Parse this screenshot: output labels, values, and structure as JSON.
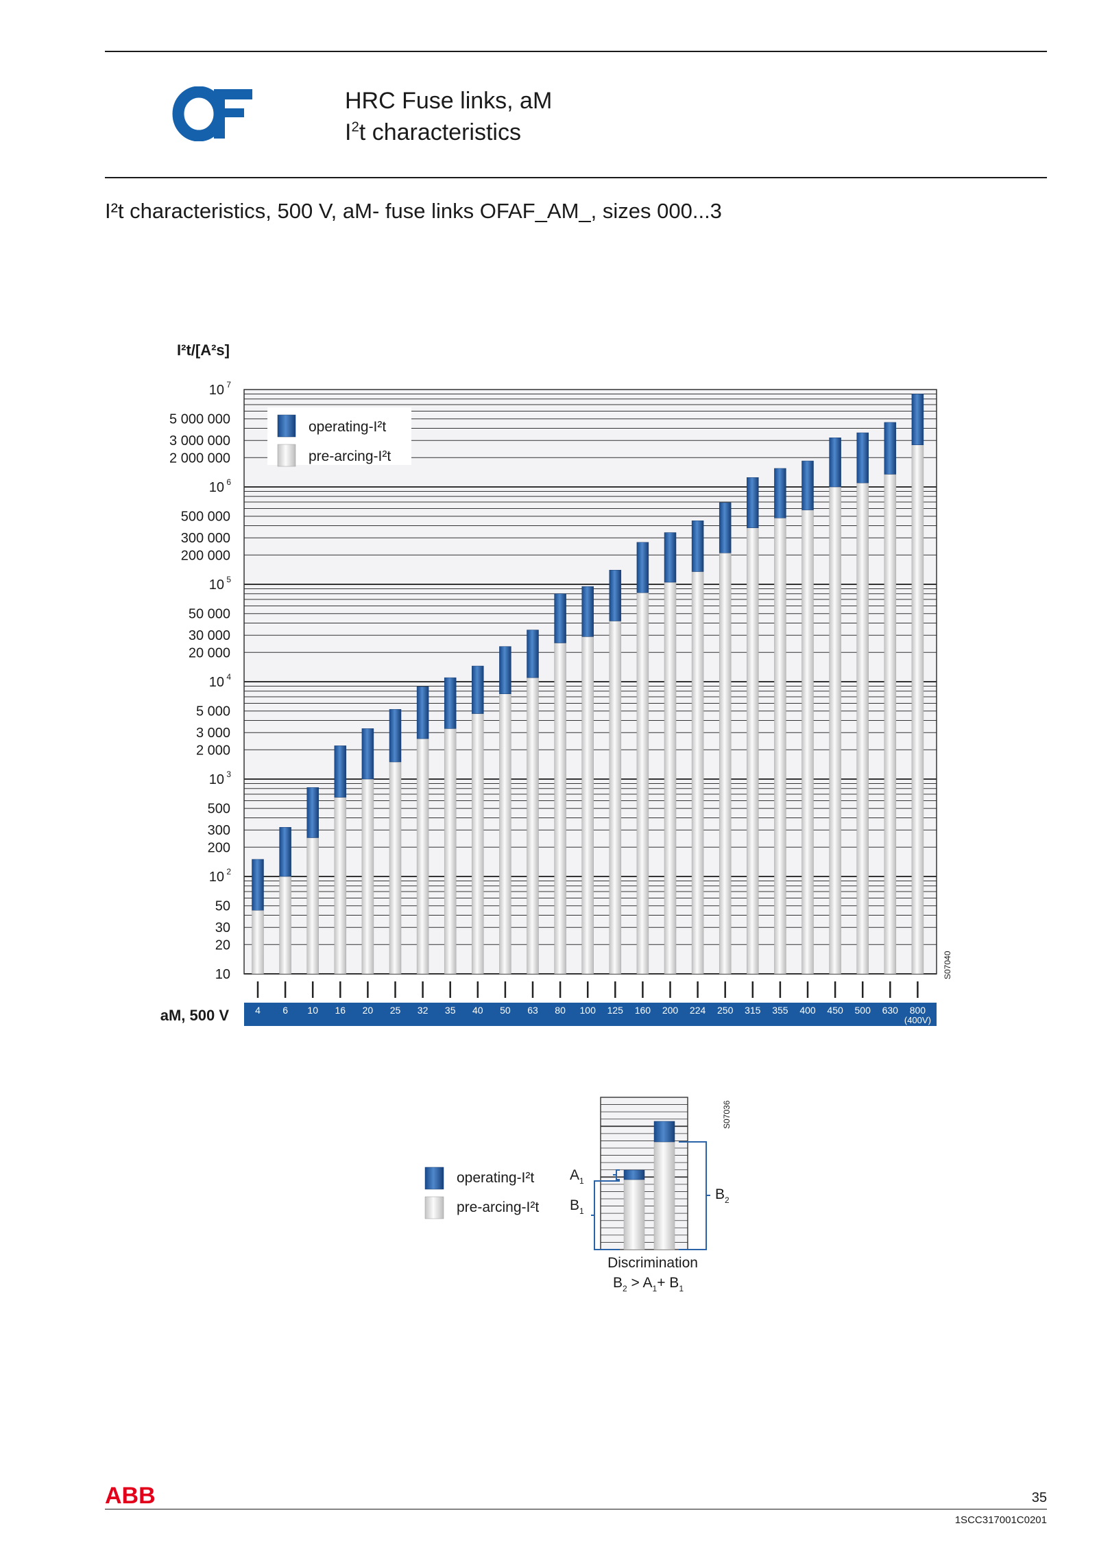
{
  "header": {
    "logo_text": "OF",
    "title_line1": "HRC Fuse links, aM",
    "title_line2_base": "I",
    "title_line2_sup": "2",
    "title_line2_rest": "t characteristics"
  },
  "section_title": "I²t characteristics, 500 V, aM- fuse links OFAF_AM_, sizes 000...3",
  "colors": {
    "operating": "#2a63a8",
    "pre_arcing": "#e4e4e4",
    "band": "#1b5aa0",
    "brand": "#1561ac",
    "abb_red": "#e2001a"
  },
  "chart_data": {
    "type": "bar",
    "stacked": true,
    "scale": "log",
    "ylabel": "I²t/[A²s]",
    "ylim": [
      10,
      10000000
    ],
    "y_tick_labels": [
      {
        "value": 10,
        "label": "10"
      },
      {
        "value": 20,
        "label": "20"
      },
      {
        "value": 30,
        "label": "30"
      },
      {
        "value": 50,
        "label": "50"
      },
      {
        "value": 100,
        "label": "10",
        "exp": "2"
      },
      {
        "value": 200,
        "label": "200"
      },
      {
        "value": 300,
        "label": "300"
      },
      {
        "value": 500,
        "label": "500"
      },
      {
        "value": 1000,
        "label": "10",
        "exp": "3"
      },
      {
        "value": 2000,
        "label": "2 000"
      },
      {
        "value": 3000,
        "label": "3 000"
      },
      {
        "value": 5000,
        "label": "5 000"
      },
      {
        "value": 10000,
        "label": "10",
        "exp": "4"
      },
      {
        "value": 20000,
        "label": "20 000"
      },
      {
        "value": 30000,
        "label": "30 000"
      },
      {
        "value": 50000,
        "label": "50 000"
      },
      {
        "value": 100000,
        "label": "10",
        "exp": "5"
      },
      {
        "value": 200000,
        "label": "200 000"
      },
      {
        "value": 300000,
        "label": "300 000"
      },
      {
        "value": 500000,
        "label": "500 000"
      },
      {
        "value": 1000000,
        "label": "10",
        "exp": "6"
      },
      {
        "value": 2000000,
        "label": "2 000 000"
      },
      {
        "value": 3000000,
        "label": "3 000 000"
      },
      {
        "value": 5000000,
        "label": "5 000 000"
      },
      {
        "value": 10000000,
        "label": "10",
        "exp": "7"
      }
    ],
    "xlabel": "aM, 500 V",
    "categories": [
      "4",
      "6",
      "10",
      "16",
      "20",
      "25",
      "32",
      "35",
      "40",
      "50",
      "63",
      "80",
      "100",
      "125",
      "160",
      "200",
      "224",
      "250",
      "315",
      "355",
      "400",
      "450",
      "500",
      "630",
      "800"
    ],
    "category_note": "(400V)",
    "series": [
      {
        "name": "pre-arcing-I²t",
        "values": [
          45,
          100,
          250,
          650,
          1000,
          1500,
          2600,
          3300,
          4700,
          7500,
          11000,
          25000,
          29000,
          42000,
          82000,
          105000,
          135000,
          210000,
          380000,
          480000,
          580000,
          1000000,
          1100000,
          1350000,
          2700000
        ]
      },
      {
        "name": "operating-I²t",
        "values": [
          150,
          320,
          820,
          2200,
          3300,
          5200,
          8900,
          11000,
          14500,
          23000,
          34000,
          80000,
          95000,
          140000,
          270000,
          340000,
          450000,
          690000,
          1250000,
          1550000,
          1850000,
          3200000,
          3600000,
          4600000,
          9000000
        ]
      }
    ],
    "legend": {
      "position": "top-left",
      "operating": "operating-I²t",
      "pre_arcing": "pre-arcing-I²t"
    },
    "figure_code": "S07040",
    "grid": true
  },
  "discrimination": {
    "legend_operating": "operating-I²t",
    "legend_pre_arcing": "pre-arcing-I²t",
    "label_a1": "A",
    "label_b1": "B",
    "label_b2": "B",
    "sub": "1",
    "sub2": "2",
    "caption": "Discrimination",
    "formula_b": "B",
    "formula_gt": ">",
    "formula_a": "A",
    "formula_plus": "+",
    "figure_code": "S07036"
  },
  "footer": {
    "brand": "ABB",
    "page_number": "35",
    "doc_code": "1SCC317001C0201"
  }
}
